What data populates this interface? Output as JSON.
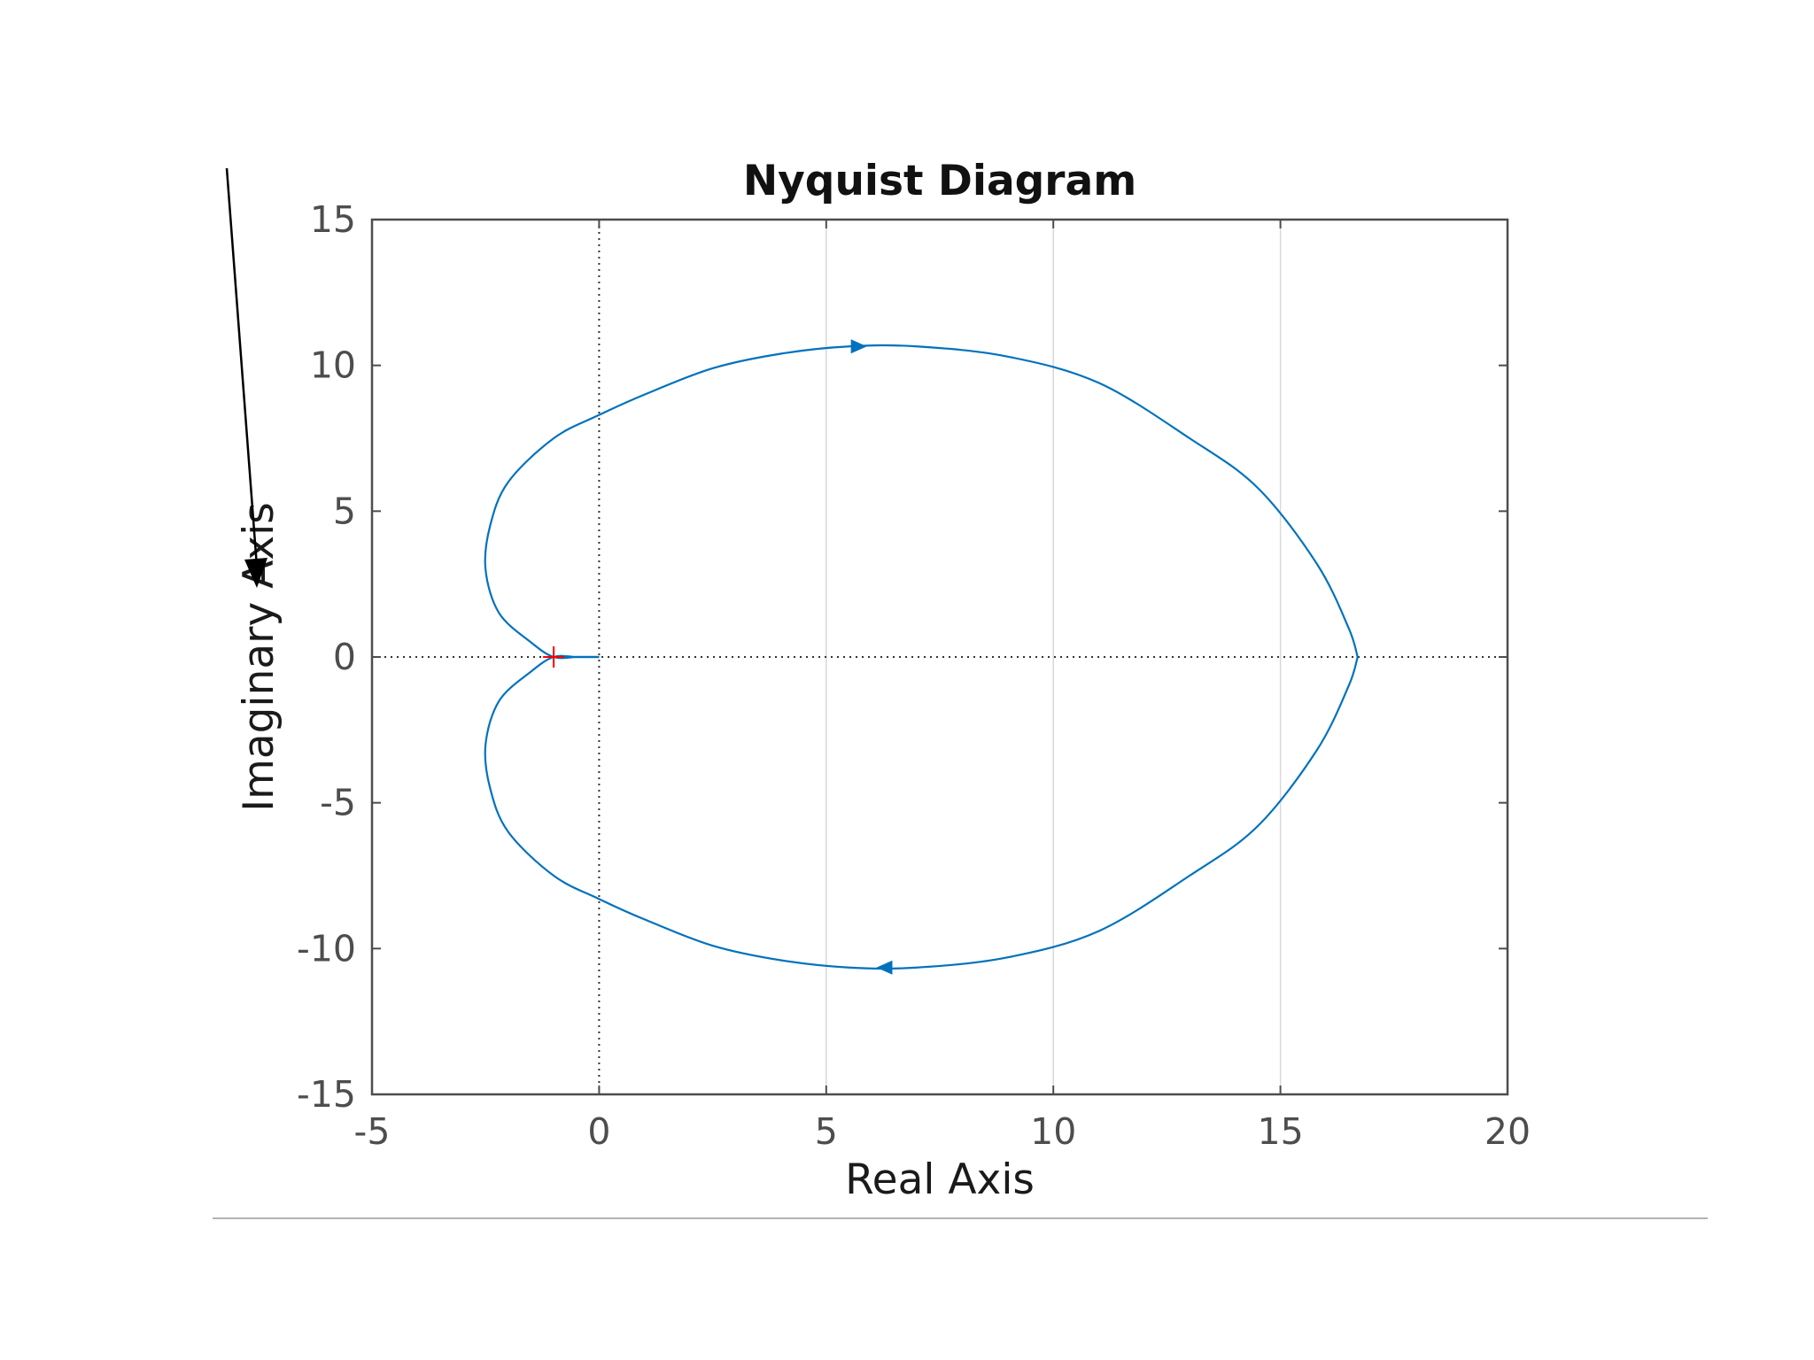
{
  "chart_data": {
    "type": "line",
    "title": "Nyquist Diagram",
    "xlabel": "Real Axis",
    "ylabel": "Imaginary Axis",
    "xlim": [
      -5,
      20
    ],
    "ylim": [
      -15,
      15
    ],
    "x_ticks": [
      -5,
      0,
      5,
      10,
      15,
      20
    ],
    "y_ticks": [
      -15,
      -10,
      -5,
      0,
      5,
      10,
      15
    ],
    "x_tick_labels": [
      "-5",
      "0",
      "5",
      "10",
      "15",
      "20"
    ],
    "y_tick_labels": [
      "-15",
      "-10",
      "-5",
      "0",
      "5",
      "10",
      "15"
    ],
    "grid": true,
    "critical_point": {
      "x": -1,
      "y": 0,
      "marker": "+",
      "color": "#ff0000"
    },
    "series": [
      {
        "color": "#0072BD",
        "x": [
          0,
          -0.5,
          -1.0,
          -1.5,
          -2.2,
          -2.5,
          -2.4,
          -2.0,
          -1.0,
          0.0,
          1.0,
          2.5,
          4.0,
          5.5,
          7.0,
          9.0,
          11.0,
          13.0,
          14.5,
          15.8,
          16.5,
          16.7
        ],
        "y": [
          0,
          0,
          0,
          0.5,
          1.5,
          3.0,
          4.5,
          6.0,
          7.5,
          8.3,
          9.0,
          9.9,
          10.4,
          10.65,
          10.65,
          10.3,
          9.4,
          7.5,
          5.8,
          3.2,
          1.0,
          0
        ]
      },
      {
        "color": "#0072BD",
        "x": [
          0,
          -0.5,
          -1.0,
          -1.5,
          -2.2,
          -2.5,
          -2.4,
          -2.0,
          -1.0,
          0.0,
          1.0,
          2.5,
          4.0,
          5.5,
          7.0,
          9.0,
          11.0,
          13.0,
          14.5,
          15.8,
          16.5,
          16.7
        ],
        "y": [
          0,
          0,
          0,
          -0.5,
          -1.5,
          -3.0,
          -4.5,
          -6.0,
          -7.5,
          -8.3,
          -9.0,
          -9.9,
          -10.4,
          -10.65,
          -10.65,
          -10.3,
          -9.4,
          -7.5,
          -5.8,
          -3.2,
          -1.0,
          0
        ]
      }
    ],
    "direction_arrows": [
      {
        "x": 5.7,
        "y": 10.65,
        "dir": "right"
      },
      {
        "x": 6.3,
        "y": -10.65,
        "dir": "left"
      }
    ],
    "colors": {
      "curve": "#0072BD",
      "critical": "#ff0000",
      "axes": "#4d4d4d",
      "grid": "#d9d9d9",
      "zero_line": "#333333"
    }
  }
}
